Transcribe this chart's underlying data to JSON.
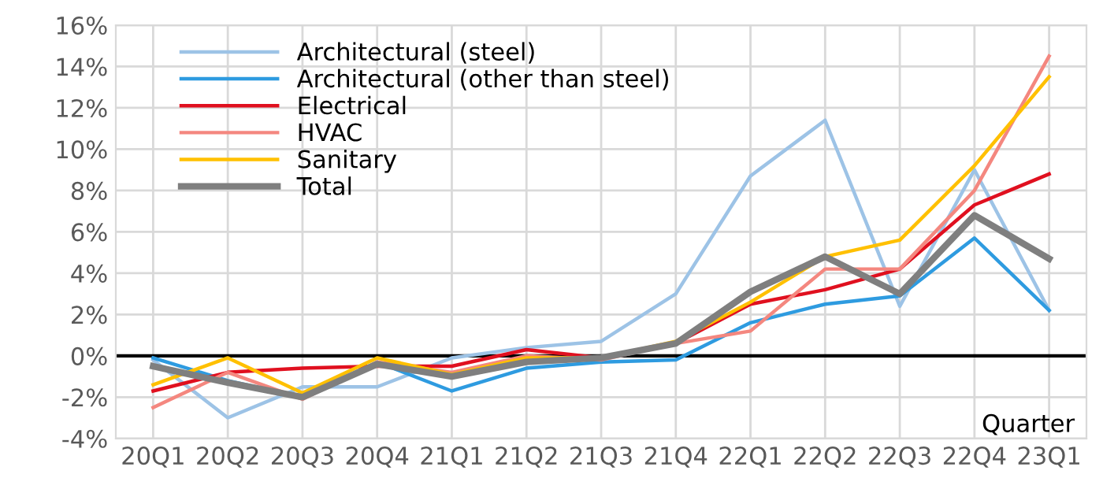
{
  "chart_data": {
    "type": "line",
    "xlabel": "Quarter",
    "categories": [
      "20Q1",
      "20Q2",
      "20Q3",
      "20Q4",
      "21Q1",
      "21Q2",
      "21Q3",
      "21Q4",
      "22Q1",
      "22Q2",
      "22Q3",
      "22Q4",
      "23Q1"
    ],
    "series": [
      {
        "name": "Architectural (steel)",
        "color": "#9dc3e6",
        "values": [
          -0.2,
          -3.0,
          -1.5,
          -1.5,
          -0.1,
          0.4,
          0.7,
          3.0,
          8.7,
          11.4,
          2.4,
          9.0,
          2.2
        ]
      },
      {
        "name": "Architectural (other than steel)",
        "color": "#2e9be0",
        "values": [
          -0.1,
          -1.2,
          -2.0,
          -0.3,
          -1.7,
          -0.6,
          -0.3,
          -0.2,
          1.6,
          2.5,
          2.9,
          5.7,
          2.2
        ]
      },
      {
        "name": "Electrical",
        "color": "#e0101f",
        "values": [
          -1.7,
          -0.8,
          -0.6,
          -0.5,
          -0.5,
          0.3,
          -0.1,
          0.6,
          2.5,
          3.2,
          4.2,
          7.3,
          8.8
        ]
      },
      {
        "name": "HVAC",
        "color": "#f4877f",
        "values": [
          -2.5,
          -0.8,
          -2.1,
          -0.3,
          -0.8,
          0.0,
          -0.2,
          0.6,
          1.2,
          4.2,
          4.2,
          8.0,
          14.5
        ]
      },
      {
        "name": "Sanitary",
        "color": "#ffc000",
        "values": [
          -1.4,
          -0.1,
          -1.8,
          -0.1,
          -0.9,
          -0.1,
          -0.1,
          0.7,
          2.6,
          4.8,
          5.6,
          9.2,
          13.5
        ]
      },
      {
        "name": "Total",
        "color": "#7f7f7f",
        "values": [
          -0.5,
          -1.3,
          -2.0,
          -0.4,
          -1.0,
          -0.3,
          -0.1,
          0.6,
          3.1,
          4.8,
          3.0,
          6.8,
          4.7
        ]
      }
    ],
    "ylim": [
      -4,
      16
    ],
    "yticks": [
      {
        "value": -4,
        "label": "-4%"
      },
      {
        "value": -2,
        "label": "-2%"
      },
      {
        "value": 0,
        "label": "0%"
      },
      {
        "value": 2,
        "label": "2%"
      },
      {
        "value": 4,
        "label": "4%"
      },
      {
        "value": 6,
        "label": "6%"
      },
      {
        "value": 8,
        "label": "8%"
      },
      {
        "value": 10,
        "label": "10%"
      },
      {
        "value": 12,
        "label": "12%"
      },
      {
        "value": 14,
        "label": "14%"
      },
      {
        "value": 16,
        "label": "16%"
      }
    ],
    "ref_lines": [
      {
        "axis": "y",
        "value": 0,
        "color": "#000000"
      }
    ],
    "grid": true,
    "legend": "top left",
    "marker": "none",
    "line_style": "solid"
  }
}
